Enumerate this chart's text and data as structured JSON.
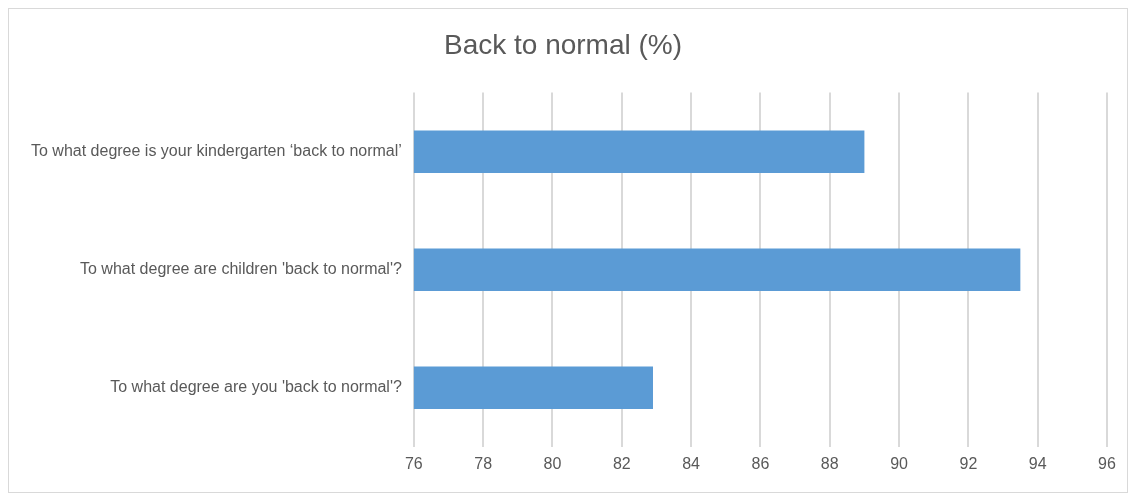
{
  "chart_data": {
    "type": "bar",
    "orientation": "horizontal",
    "title": "Back to normal (%)",
    "categories": [
      "To what degree is your kindergarten ‘back to normal’",
      "To what degree are children 'back to normal'?",
      "To what degree are you 'back to normal'?"
    ],
    "values": [
      89.0,
      93.5,
      82.9
    ],
    "color": "#5b9bd5",
    "xlim": [
      76,
      96
    ],
    "xticks": [
      76,
      78,
      80,
      82,
      84,
      86,
      88,
      90,
      92,
      94,
      96
    ],
    "grid": "x",
    "legend": false
  }
}
